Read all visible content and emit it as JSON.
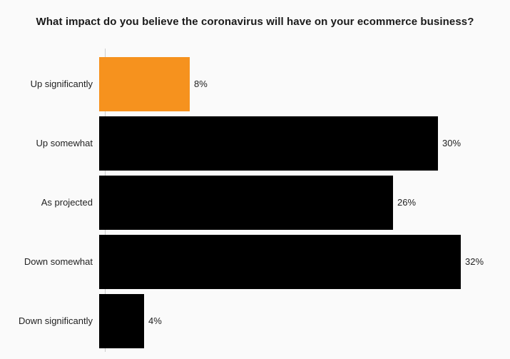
{
  "chart_data": {
    "type": "bar",
    "orientation": "horizontal",
    "title": "What impact do you believe the coronavirus will have on your ecommerce business?",
    "categories": [
      "Up significantly",
      "Up somewhat",
      "As projected",
      "Down somewhat",
      "Down significantly"
    ],
    "values": [
      8,
      30,
      26,
      32,
      4
    ],
    "value_labels": [
      "8%",
      "30%",
      "26%",
      "32%",
      "4%"
    ],
    "bar_colors": [
      "#F6921E",
      "#000000",
      "#000000",
      "#000000",
      "#000000"
    ],
    "xlabel": "",
    "ylabel": "",
    "xlim": [
      0,
      34
    ],
    "grid": false,
    "legend": false,
    "colors": {
      "highlight": "#F6921E",
      "default_bar": "#000000",
      "background": "#fafafa",
      "axis": "#cccccc",
      "text": "#222222",
      "title": "#1a1a1a"
    }
  }
}
